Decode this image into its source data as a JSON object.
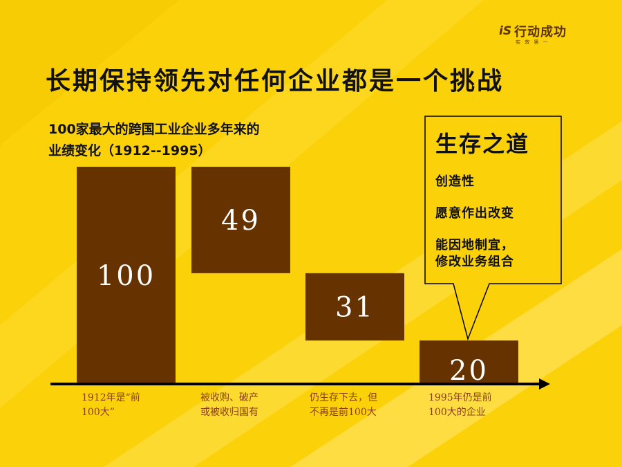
{
  "header": {
    "title": "长期保持领先对任何企业都是一个挑战",
    "logo": {
      "brand": "行动成功",
      "tagline": "实 效 第 一"
    }
  },
  "subtitle": {
    "line1": "100家最大的跨国工业企业多年来的",
    "line2": "业绩变化（1912--1995）"
  },
  "chart_data": {
    "type": "bar",
    "values": [
      100,
      49,
      31,
      20
    ],
    "data_labels": [
      "100",
      "49",
      "31",
      "20"
    ],
    "categories": [
      [
        "1912年是“前",
        "100大”"
      ],
      [
        "被收购、破产",
        "或被收归国有"
      ],
      [
        "仍生存下去，但",
        "不再是前100大"
      ],
      [
        "1995年仍是前",
        "100大的企业"
      ]
    ],
    "style": "waterfall",
    "colors": {
      "bar": "#663300",
      "label": "#ffffff",
      "axis": "#000000",
      "category_text": "#8a3e10"
    }
  },
  "callout": {
    "heading": "生存之道",
    "items": [
      "创造性",
      "愿意作出改变",
      "能因地制宜，\n修改业务组合"
    ]
  },
  "colors": {
    "background": "#fbd20a",
    "stripe": "#fde25a",
    "text": "#111111"
  }
}
